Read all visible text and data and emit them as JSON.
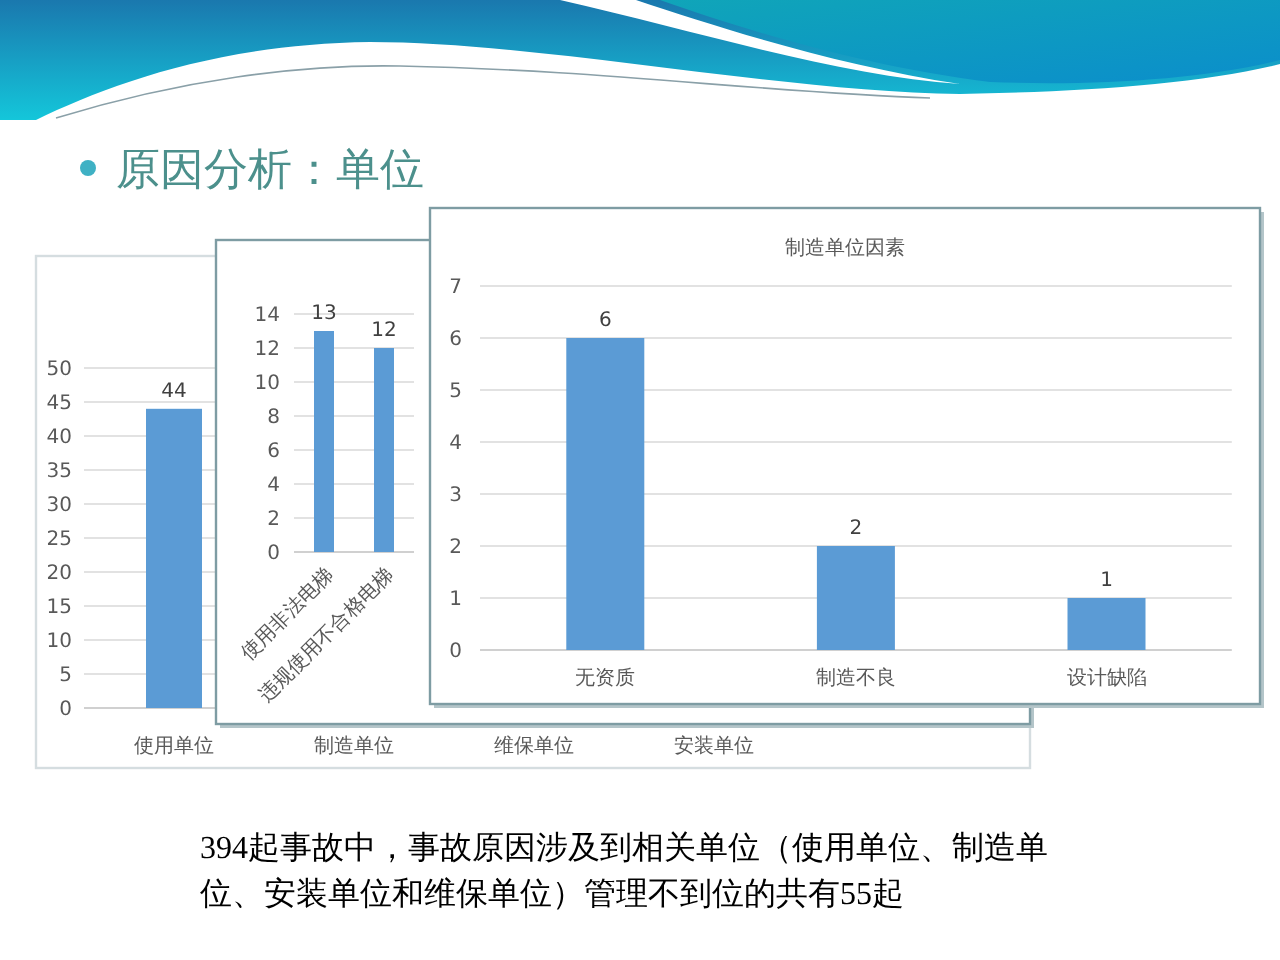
{
  "chart_data": [
    {
      "type": "other",
      "title": "原因分析：单位",
      "annotations": [
        "394起事故中，事故原因涉及到相关单位（使用单位、制造单位、安装单位和维保单位）管理不到位的共有55起"
      ]
    },
    {
      "type": "bar",
      "categories": [
        "使用单位",
        "制造单位",
        "维保单位",
        "安装单位"
      ],
      "values": [
        44,
        null,
        null,
        null
      ],
      "color": "#5b9bd5",
      "ylim": [
        0,
        50
      ],
      "yticks": [
        0,
        5,
        10,
        15,
        20,
        25,
        30,
        35,
        40,
        45,
        50
      ],
      "grid": "y",
      "data_labels": true
    },
    {
      "type": "bar",
      "categories": [
        "使用非法电梯",
        "违规使用不合格电梯"
      ],
      "values": [
        13,
        12
      ],
      "color": "#5b9bd5",
      "ylim": [
        0,
        14
      ],
      "yticks": [
        0,
        2,
        4,
        6,
        8,
        10,
        12,
        14
      ],
      "grid": "y",
      "data_labels": true
    },
    {
      "type": "bar",
      "title": "制造单位因素",
      "categories": [
        "无资质",
        "制造不良",
        "设计缺陷"
      ],
      "values": [
        6,
        2,
        1
      ],
      "color": "#5b9bd5",
      "ylim": [
        0,
        7
      ],
      "yticks": [
        0,
        1,
        2,
        3,
        4,
        5,
        6,
        7
      ],
      "grid": "y",
      "data_labels": true
    }
  ]
}
